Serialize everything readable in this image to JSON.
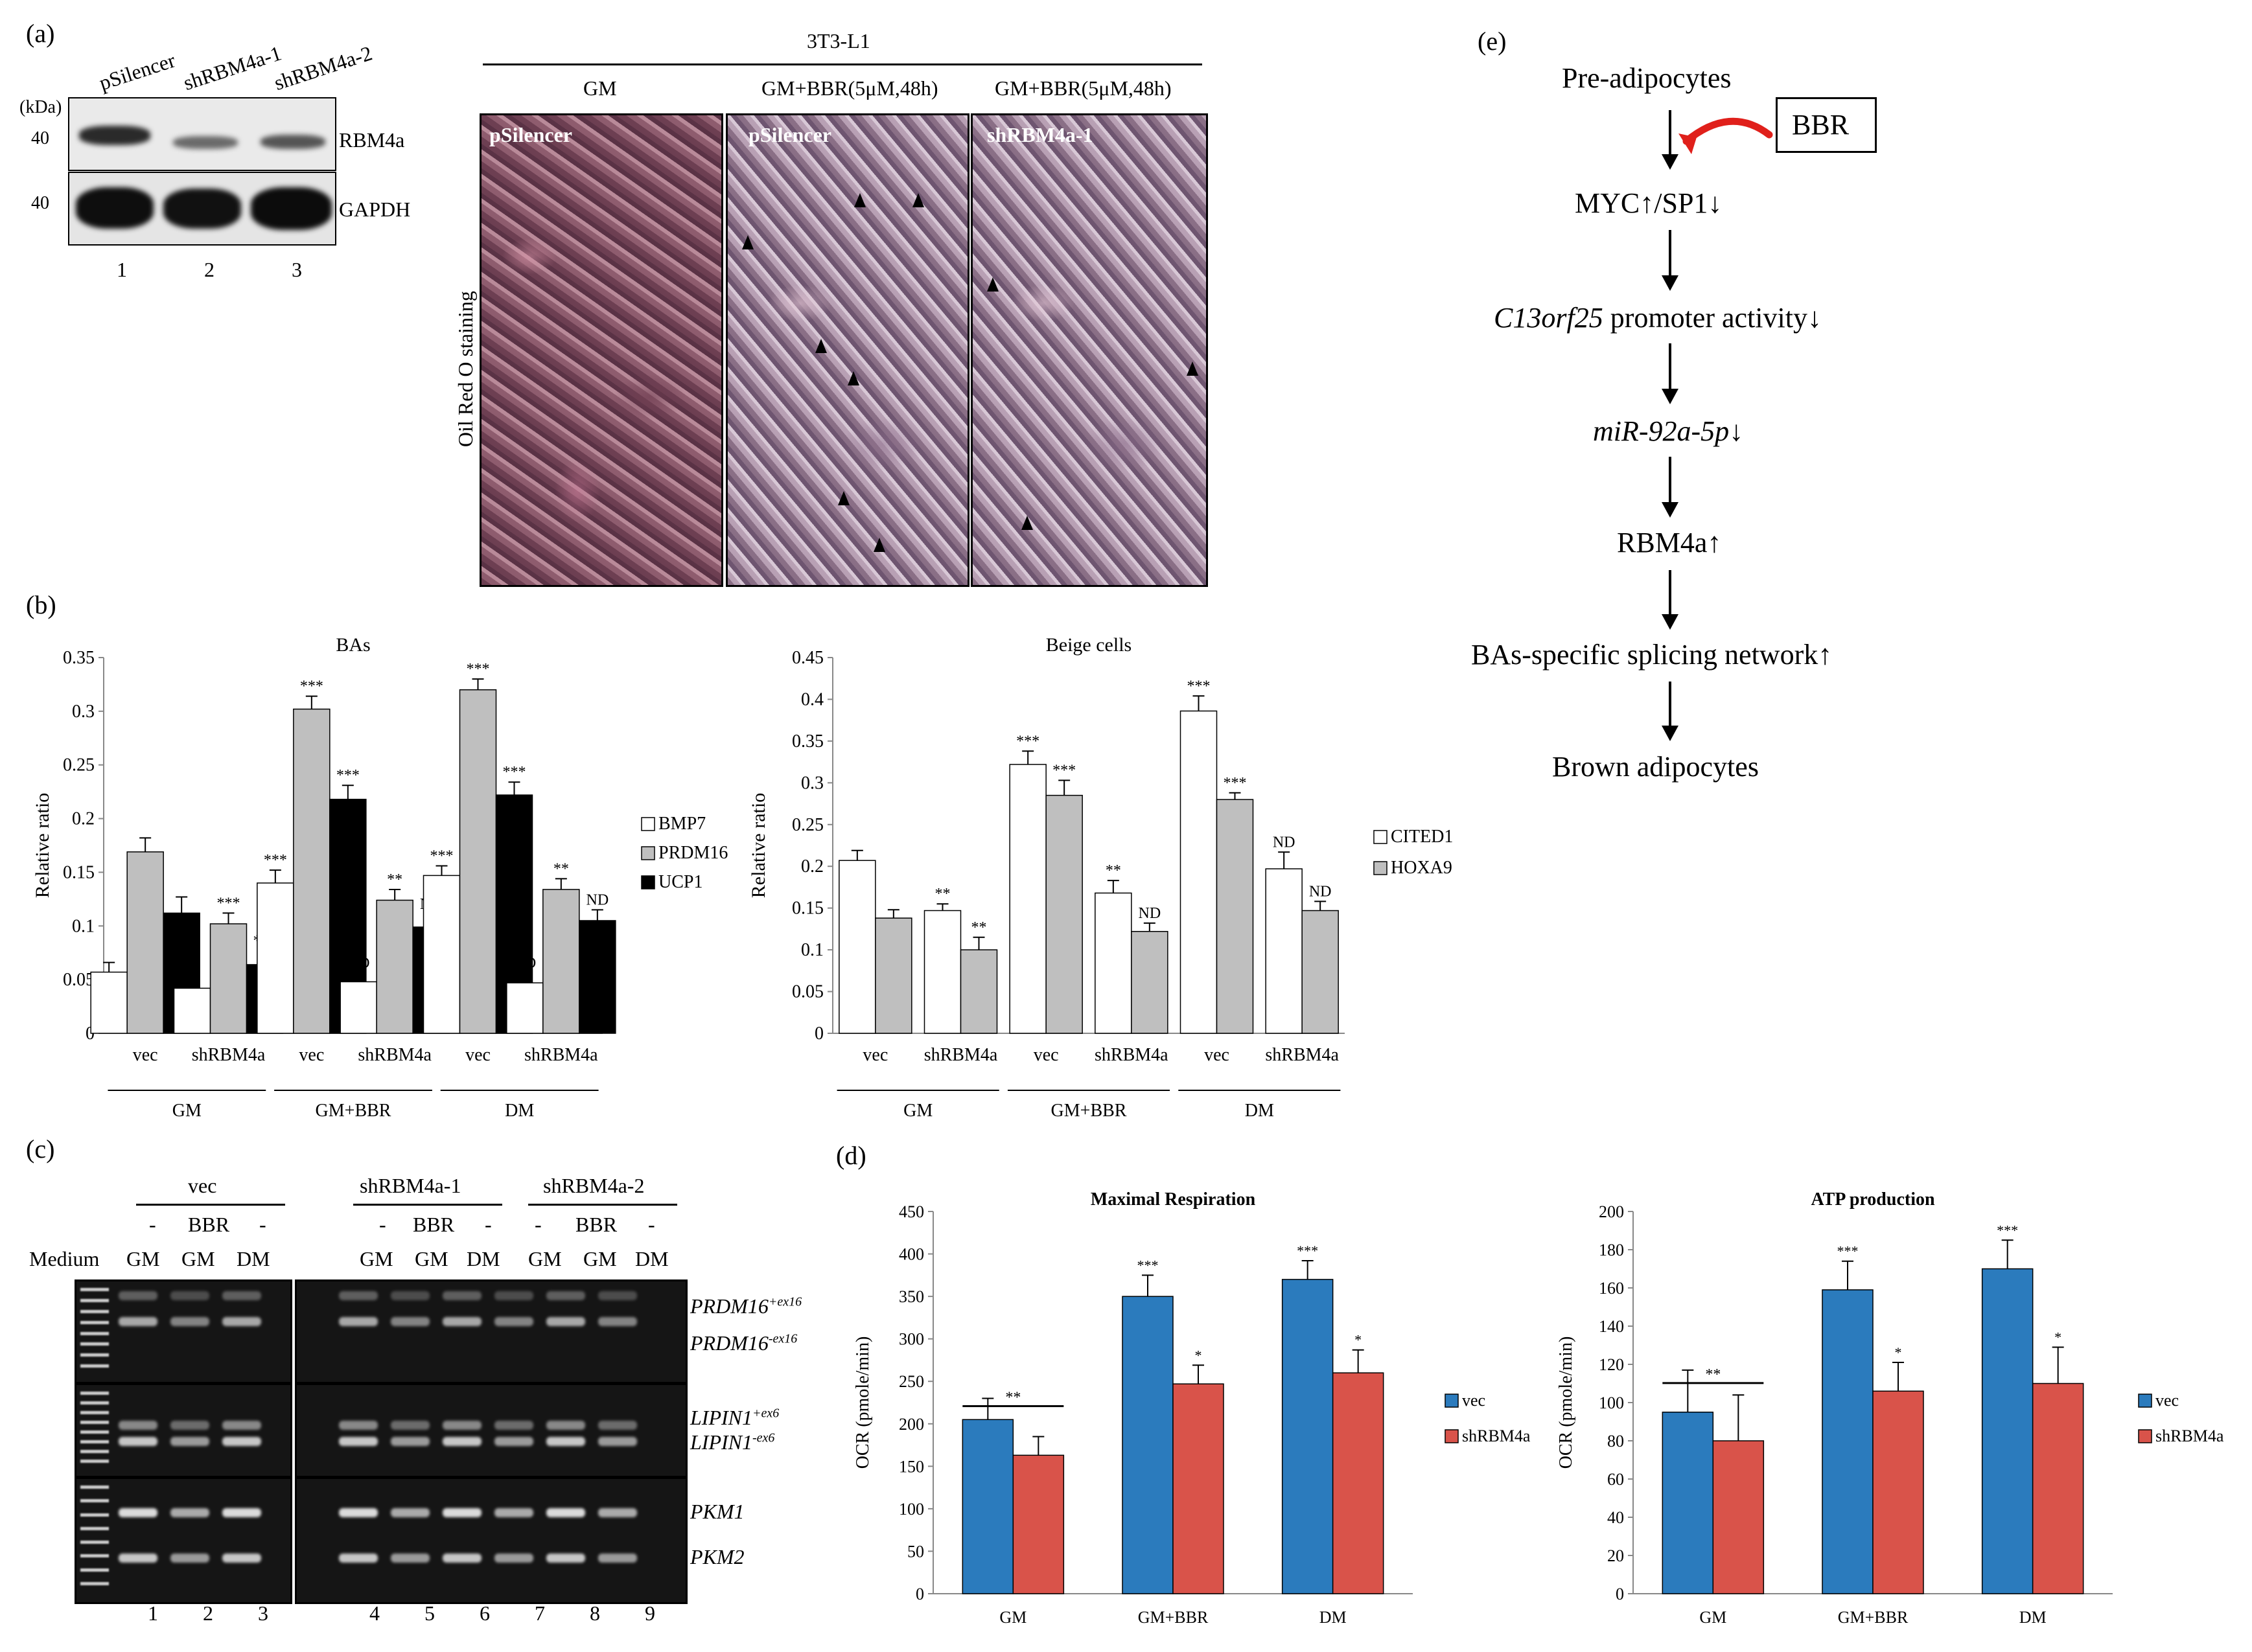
{
  "panel_a": {
    "label": "(a)",
    "blot_lanes": [
      "pSilencer",
      "shRBM4a-1",
      "shRBM4a-2"
    ],
    "kda": "(kDa)",
    "marker_rbm4a": "40",
    "marker_gapdh": "40",
    "row_rbm4a": "RBM4a",
    "row_gapdh": "GAPDH",
    "lane_numbers": [
      "1",
      "2",
      "3"
    ],
    "cell_line": "3T3-L1",
    "conditions": [
      "GM",
      "GM+BBR(5μM,48h)",
      "GM+BBR(5μM,48h)"
    ],
    "image_labels": [
      "pSilencer",
      "pSilencer",
      "shRBM4a-1"
    ],
    "stain_label": "Oil Red O staining"
  },
  "panel_b_label": "(b)",
  "panel_c": {
    "label": "(c)",
    "groups": [
      "vec",
      "shRBM4a-1",
      "shRBM4a-2"
    ],
    "treatment": [
      "-",
      "BBR",
      "-"
    ],
    "medium_label": "Medium",
    "medium": [
      "GM",
      "GM",
      "DM"
    ],
    "bands": [
      "PRDM16",
      "+ex16",
      "PRDM16",
      "-ex16",
      "LIPIN1",
      "+ex6",
      "LIPIN1",
      "-ex6",
      "PKM1",
      "PKM2"
    ],
    "lane_numbers": [
      "1",
      "2",
      "3",
      "4",
      "5",
      "6",
      "7",
      "8",
      "9"
    ]
  },
  "panel_d_label": "(d)",
  "panel_e": {
    "label": "(e)",
    "steps": [
      "Pre-adipocytes",
      "MYC",
      "/SP1",
      "C13orf25",
      " promoter activity",
      "miR-92a-5p",
      "RBM4a",
      "BAs-specific splicing network",
      "Brown adipocytes"
    ],
    "up": "↑",
    "down": "↓",
    "drug": "BBR"
  },
  "colors": {
    "vec": "#2b7bbd",
    "shRBM4a": "#d9534a",
    "ucp1": "#000000",
    "prdm16": "#bfbfbf",
    "bmp7": "#ffffff",
    "inhibit": "#e0201b"
  },
  "chart_data": [
    {
      "type": "bar",
      "title": "BAs",
      "ylabel": "Relative ratio",
      "ylim": [
        0,
        0.35
      ],
      "yticks": [
        "0",
        "0.05",
        "0.1",
        "0.15",
        "0.2",
        "0.25",
        "0.3",
        "0.35"
      ],
      "categories": [
        "vec",
        "shRBM4a",
        "vec",
        "shRBM4a",
        "vec",
        "shRBM4a"
      ],
      "groups": [
        "GM",
        "GM+BBR",
        "DM"
      ],
      "series": [
        {
          "name": "BMP7",
          "values": [
            0.057,
            0.042,
            0.14,
            0.048,
            0.147,
            0.047
          ],
          "errors": [
            0.009,
            0.007,
            0.012,
            0.008,
            0.009,
            0.009
          ],
          "marks": [
            "",
            "**",
            "***",
            "ND",
            "***",
            "ND"
          ]
        },
        {
          "name": "PRDM16",
          "values": [
            0.169,
            0.102,
            0.302,
            0.124,
            0.32,
            0.134
          ],
          "errors": [
            0.013,
            0.01,
            0.012,
            0.01,
            0.01,
            0.01
          ],
          "marks": [
            "",
            "***",
            "***",
            "**",
            "***",
            "**"
          ]
        },
        {
          "name": "UCP1",
          "values": [
            0.112,
            0.064,
            0.218,
            0.099,
            0.222,
            0.105
          ],
          "errors": [
            0.015,
            0.013,
            0.013,
            0.012,
            0.012,
            0.01
          ],
          "marks": [
            "",
            "***",
            "***",
            "ND",
            "***",
            "ND"
          ]
        }
      ]
    },
    {
      "type": "bar",
      "title": "Beige cells",
      "ylabel": "Relative ratio",
      "ylim": [
        0,
        0.45
      ],
      "yticks": [
        "0",
        "0.05",
        "0.1",
        "0.15",
        "0.2",
        "0.25",
        "0.3",
        "0.35",
        "0.4",
        "0.45"
      ],
      "categories": [
        "vec",
        "shRBM4a",
        "vec",
        "shRBM4a",
        "vec",
        "shRBM4a"
      ],
      "groups": [
        "GM",
        "GM+BBR",
        "DM"
      ],
      "series": [
        {
          "name": "CITED1",
          "values": [
            0.207,
            0.147,
            0.322,
            0.168,
            0.386,
            0.197
          ],
          "errors": [
            0.012,
            0.008,
            0.016,
            0.015,
            0.018,
            0.02
          ],
          "marks": [
            "",
            "**",
            "***",
            "**",
            "***",
            "ND"
          ]
        },
        {
          "name": "HOXA9",
          "values": [
            0.138,
            0.1,
            0.285,
            0.122,
            0.28,
            0.147
          ],
          "errors": [
            0.01,
            0.015,
            0.018,
            0.01,
            0.008,
            0.011
          ],
          "marks": [
            "",
            "**",
            "***",
            "ND",
            "***",
            "ND"
          ]
        }
      ]
    },
    {
      "type": "bar",
      "title": "Maximal Respiration",
      "ylabel": "OCR (pmole/min)",
      "ylim": [
        0,
        450
      ],
      "yticks": [
        "0",
        "50",
        "100",
        "150",
        "200",
        "250",
        "300",
        "350",
        "400",
        "450"
      ],
      "categories": [
        "GM",
        "GM+BBR",
        "DM"
      ],
      "series": [
        {
          "name": "vec",
          "values": [
            205,
            350,
            370
          ],
          "errors": [
            25,
            25,
            22
          ],
          "marks": [
            "",
            "***",
            "***"
          ]
        },
        {
          "name": "shRBM4a",
          "values": [
            163,
            247,
            260
          ],
          "errors": [
            22,
            22,
            27
          ],
          "marks": [
            "",
            "*",
            "*"
          ]
        }
      ],
      "bracket": "**"
    },
    {
      "type": "bar",
      "title": "ATP production",
      "ylabel": "OCR (pmole/min)",
      "ylim": [
        0,
        200
      ],
      "yticks": [
        "0",
        "20",
        "40",
        "60",
        "80",
        "100",
        "120",
        "140",
        "160",
        "180",
        "200"
      ],
      "categories": [
        "GM",
        "GM+BBR",
        "DM"
      ],
      "series": [
        {
          "name": "vec",
          "values": [
            95,
            159,
            170
          ],
          "errors": [
            22,
            15,
            15
          ],
          "marks": [
            "",
            "***",
            "***"
          ]
        },
        {
          "name": "shRBM4a",
          "values": [
            80,
            106,
            110
          ],
          "errors": [
            24,
            15,
            19
          ],
          "marks": [
            "",
            "*",
            "*"
          ]
        }
      ],
      "bracket": "**"
    }
  ]
}
